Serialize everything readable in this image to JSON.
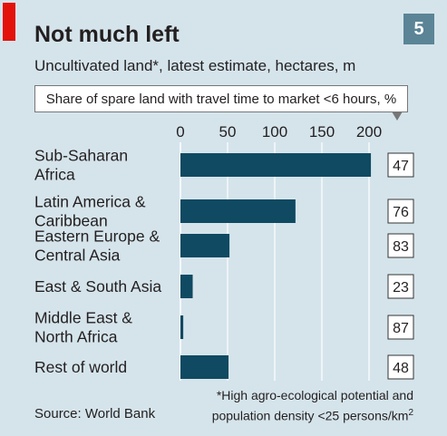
{
  "header": {
    "title": "Not much left",
    "subtitle": "Uncultivated land*, latest estimate, hectares, m",
    "chart_number": "5"
  },
  "legend": {
    "label": "Share of spare land with travel time to market <6 hours, %"
  },
  "chart_data": {
    "type": "bar",
    "orientation": "horizontal",
    "title": "Not much left",
    "subtitle": "Uncultivated land*, latest estimate, hectares, m",
    "categories": [
      [
        "Sub-Saharan",
        "Africa"
      ],
      [
        "Latin America &",
        "Caribbean"
      ],
      [
        "Eastern Europe &",
        "Central Asia"
      ],
      [
        "East & South Asia"
      ],
      [
        "Middle East &",
        "North Africa"
      ],
      [
        "Rest of world"
      ]
    ],
    "values": [
      202,
      122,
      52,
      13,
      3,
      51
    ],
    "share_labels": [
      "47",
      "76",
      "83",
      "23",
      "87",
      "48"
    ],
    "xlim": [
      0,
      220
    ],
    "xticks": [
      0,
      50,
      100,
      150,
      200
    ],
    "grid": true,
    "bar_color": "#0f4a62",
    "grid_color": "#ffffff"
  },
  "footer": {
    "source": "Source: World Bank",
    "footnote_line1": "*High agro-ecological potential and",
    "footnote_line2_prefix": "population density <25 persons/km",
    "footnote_line2_sup": "2"
  }
}
